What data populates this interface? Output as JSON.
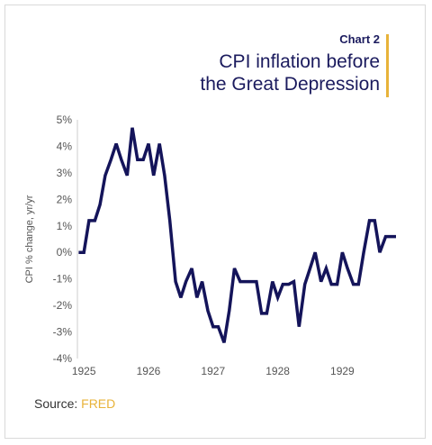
{
  "header": {
    "chart_label": "Chart 2",
    "title": "CPI inflation before\nthe Great Depression",
    "accent_color": "#e8b33a"
  },
  "source": {
    "label": "Source:",
    "name": "FRED",
    "name_color": "#e8b33a"
  },
  "chart_data": {
    "type": "line",
    "title": "CPI inflation before the Great Depression",
    "ylabel": "CPI % change, yr/yr",
    "xlabel": "",
    "ylim": [
      -4,
      5
    ],
    "xlim": [
      1924.9,
      1929.9
    ],
    "y_ticks": [
      "5%",
      "4%",
      "3%",
      "2%",
      "1%",
      "0%",
      "-1%",
      "-2%",
      "-3%",
      "-4%"
    ],
    "x_ticks": [
      "1925",
      "1926",
      "1927",
      "1928",
      "1929"
    ],
    "grid": false,
    "line_color": "#14145a",
    "series": [
      {
        "x": [
          1924.92,
          1925.0,
          1925.08,
          1925.17,
          1925.25,
          1925.33,
          1925.42,
          1925.5,
          1925.58,
          1925.67,
          1925.75,
          1925.83,
          1925.92,
          1926.0,
          1926.08,
          1926.17,
          1926.25,
          1926.33,
          1926.42,
          1926.5,
          1926.58,
          1926.67,
          1926.75,
          1926.83,
          1926.92,
          1927.0,
          1927.08,
          1927.17,
          1927.25,
          1927.33,
          1927.42,
          1927.5,
          1927.58,
          1927.67,
          1927.75,
          1927.83,
          1927.92,
          1928.0,
          1928.08,
          1928.17,
          1928.25,
          1928.33,
          1928.42,
          1928.5,
          1928.58,
          1928.67,
          1928.75,
          1928.83,
          1928.92,
          1929.0,
          1929.08,
          1929.17,
          1929.25,
          1929.33,
          1929.42,
          1929.5,
          1929.58,
          1929.67,
          1929.75,
          1929.83
        ],
        "values": [
          0.0,
          0.0,
          1.2,
          1.2,
          1.8,
          2.9,
          3.5,
          4.1,
          3.5,
          2.9,
          4.7,
          3.5,
          3.5,
          4.1,
          2.9,
          4.1,
          2.9,
          1.2,
          -1.1,
          -1.7,
          -1.1,
          -0.6,
          -1.7,
          -1.1,
          -2.2,
          -2.8,
          -2.8,
          -3.4,
          -2.2,
          -0.6,
          -1.1,
          -1.1,
          -1.1,
          -1.1,
          -2.3,
          -2.3,
          -1.1,
          -1.7,
          -1.2,
          -1.2,
          -1.1,
          -2.8,
          -1.2,
          -0.6,
          0.0,
          -1.1,
          -0.6,
          -1.2,
          -1.2,
          0.0,
          -0.6,
          -1.2,
          -1.2,
          0.0,
          1.2,
          1.2,
          0.0,
          0.6,
          0.6,
          0.6
        ]
      }
    ]
  }
}
